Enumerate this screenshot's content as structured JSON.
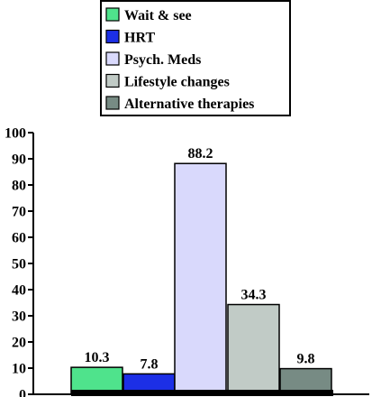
{
  "chart_data": {
    "type": "bar",
    "categories": [
      "Wait & see",
      "HRT",
      "Psych. Meds",
      "Lifestyle changes",
      "Alternative therapies"
    ],
    "values": [
      10.3,
      7.8,
      88.2,
      34.3,
      9.8
    ],
    "data_labels": [
      "10.3",
      "7.8",
      "88.2",
      "34.3",
      "9.8"
    ],
    "colors": [
      "#4fe38c",
      "#1c2fe6",
      "#d9d9fc",
      "#c1cbc6",
      "#778b84"
    ],
    "ylim": [
      0,
      100
    ],
    "yticks": [
      0,
      10,
      20,
      30,
      40,
      50,
      60,
      70,
      80,
      90,
      100
    ],
    "ytick_labels": [
      "0",
      "10",
      "20",
      "30",
      "40",
      "50",
      "60",
      "70",
      "80",
      "90",
      "100"
    ],
    "legend_position": "top",
    "grid": false,
    "title": "",
    "xlabel": "",
    "ylabel": ""
  }
}
